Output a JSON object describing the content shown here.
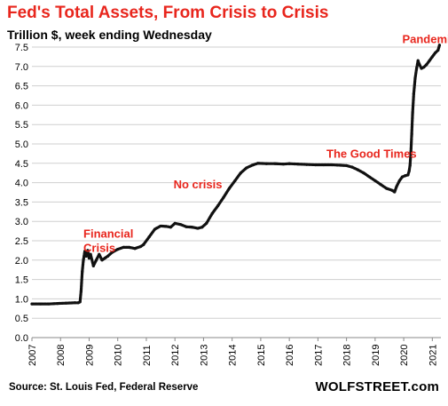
{
  "title": "Fed's Total Assets, From Crisis to Crisis",
  "subtitle": "Trillion $, week ending Wednesday",
  "source": "Source: St. Louis Fed, Federal Reserve",
  "brand": "WOLFSTREET.com",
  "colors": {
    "title": "#e8261d",
    "line_dots": "#111111",
    "line_highlight": "#e8261d",
    "grid": "#cfcfcf"
  },
  "chart_data": {
    "type": "line",
    "title": "Fed's Total Assets, From Crisis to Crisis",
    "subtitle": "Trillion $, week ending Wednesday",
    "xlabel": "",
    "ylabel": "",
    "xlim": [
      2007.0,
      2021.3
    ],
    "ylim": [
      0,
      7.5
    ],
    "grid": true,
    "y_ticks": [
      "0.0",
      "0.5",
      "1.0",
      "1.5",
      "2.0",
      "2.5",
      "3.0",
      "3.5",
      "4.0",
      "4.5",
      "5.0",
      "5.5",
      "6.0",
      "6.5",
      "7.0",
      "7.5"
    ],
    "x_ticks": [
      "2007",
      "2008",
      "2009",
      "2010",
      "2011",
      "2012",
      "2013",
      "2014",
      "2015",
      "2016",
      "2017",
      "2018",
      "2019",
      "2020",
      "2021"
    ],
    "annotations": [
      {
        "text": "Financial",
        "x": 2008.8,
        "y": 2.58
      },
      {
        "text": "Crisis",
        "x": 2008.8,
        "y": 2.21
      },
      {
        "text": "No crisis",
        "x": 2011.95,
        "y": 3.85
      },
      {
        "text": "The Good Times",
        "x": 2017.3,
        "y": 4.65
      },
      {
        "text": "Pandemic",
        "x": 2019.95,
        "y": 7.6
      }
    ],
    "series": [
      {
        "x": [
          2007.0,
          2007.3,
          2007.6,
          2007.9,
          2008.2,
          2008.5,
          2008.62,
          2008.68,
          2008.72,
          2008.76,
          2008.8,
          2008.85,
          2008.9,
          2008.95,
          2009.0,
          2009.05,
          2009.15,
          2009.25,
          2009.35,
          2009.45,
          2009.55,
          2009.65,
          2009.8,
          2010.0,
          2010.2,
          2010.4,
          2010.6,
          2010.8,
          2010.9,
          2011.1,
          2011.3,
          2011.5,
          2011.7,
          2011.85,
          2012.0,
          2012.2,
          2012.4,
          2012.6,
          2012.8,
          2012.95,
          2013.1,
          2013.3,
          2013.5,
          2013.7,
          2013.9,
          2014.1,
          2014.3,
          2014.5,
          2014.7,
          2014.9,
          2015.2,
          2015.5,
          2015.8,
          2016.0,
          2016.3,
          2016.6,
          2016.9,
          2017.2,
          2017.5,
          2017.8,
          2018.0,
          2018.2,
          2018.4,
          2018.6,
          2018.8,
          2019.0,
          2019.2,
          2019.4,
          2019.6,
          2019.68,
          2019.75,
          2019.85,
          2019.95,
          2020.05,
          2020.15,
          2020.19,
          2020.22,
          2020.25,
          2020.28,
          2020.31,
          2020.35,
          2020.4,
          2020.45,
          2020.5,
          2020.55,
          2020.62,
          2020.7,
          2020.8,
          2020.9,
          2021.0,
          2021.1,
          2021.2,
          2021.25
        ],
        "y": [
          0.87,
          0.87,
          0.87,
          0.88,
          0.89,
          0.9,
          0.9,
          0.92,
          1.2,
          1.7,
          2.0,
          2.23,
          2.1,
          2.25,
          2.05,
          2.15,
          1.85,
          2.0,
          2.15,
          2.0,
          2.05,
          2.1,
          2.2,
          2.28,
          2.33,
          2.33,
          2.3,
          2.35,
          2.4,
          2.6,
          2.8,
          2.88,
          2.87,
          2.85,
          2.95,
          2.92,
          2.86,
          2.85,
          2.82,
          2.85,
          2.95,
          3.2,
          3.4,
          3.62,
          3.85,
          4.05,
          4.25,
          4.38,
          4.45,
          4.5,
          4.49,
          4.49,
          4.48,
          4.49,
          4.48,
          4.47,
          4.46,
          4.46,
          4.46,
          4.45,
          4.44,
          4.4,
          4.33,
          4.25,
          4.15,
          4.05,
          3.95,
          3.85,
          3.8,
          3.76,
          3.9,
          4.05,
          4.15,
          4.18,
          4.2,
          4.3,
          4.45,
          4.8,
          5.25,
          5.8,
          6.3,
          6.7,
          6.95,
          7.15,
          7.05,
          6.95,
          6.98,
          7.05,
          7.15,
          7.25,
          7.35,
          7.42,
          7.55
        ]
      }
    ]
  }
}
